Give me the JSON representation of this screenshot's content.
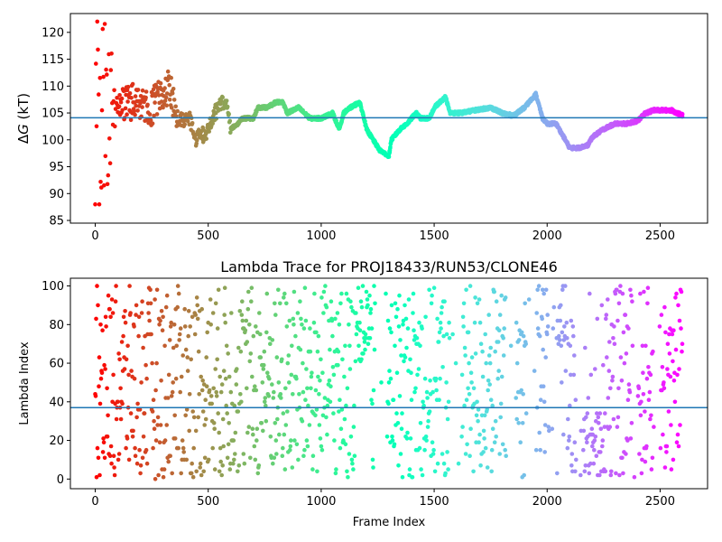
{
  "chart_data": [
    {
      "type": "scatter",
      "title": "",
      "xlabel": "",
      "ylabel_prefix": "Δ",
      "ylabel_symbol": "G",
      "ylabel_suffix": " (kT)",
      "xlim": [
        -110,
        2710
      ],
      "ylim": [
        84.5,
        123.5
      ],
      "xticks": [
        0,
        500,
        1000,
        1500,
        2000,
        2500
      ],
      "yticks": [
        85,
        90,
        95,
        100,
        105,
        110,
        115,
        120
      ],
      "hline": 104.1,
      "hline_color": "#1f77b4",
      "colormap": "rainbow",
      "frame_count": 2600,
      "trend": [
        [
          0,
          110
        ],
        [
          60,
          108
        ],
        [
          100,
          106
        ],
        [
          150,
          107
        ],
        [
          200,
          107
        ],
        [
          250,
          106
        ],
        [
          300,
          109
        ],
        [
          330,
          110
        ],
        [
          360,
          104
        ],
        [
          420,
          104
        ],
        [
          440,
          100
        ],
        [
          480,
          101
        ],
        [
          500,
          102
        ],
        [
          530,
          105
        ],
        [
          560,
          107
        ],
        [
          590,
          106
        ],
        [
          600,
          102
        ],
        [
          630,
          103
        ],
        [
          650,
          104
        ],
        [
          700,
          104
        ],
        [
          720,
          106
        ],
        [
          760,
          106
        ],
        [
          800,
          107
        ],
        [
          830,
          107
        ],
        [
          850,
          105
        ],
        [
          900,
          106
        ],
        [
          950,
          104
        ],
        [
          1000,
          104
        ],
        [
          1050,
          105
        ],
        [
          1080,
          102
        ],
        [
          1100,
          105
        ],
        [
          1130,
          106
        ],
        [
          1170,
          107
        ],
        [
          1190,
          104
        ],
        [
          1200,
          102
        ],
        [
          1230,
          100
        ],
        [
          1260,
          98
        ],
        [
          1300,
          97
        ],
        [
          1310,
          100
        ],
        [
          1350,
          102
        ],
        [
          1380,
          103
        ],
        [
          1420,
          105
        ],
        [
          1440,
          104
        ],
        [
          1480,
          104
        ],
        [
          1500,
          106
        ],
        [
          1550,
          108
        ],
        [
          1570,
          105
        ],
        [
          1620,
          105
        ],
        [
          1680,
          105.5
        ],
        [
          1750,
          106
        ],
        [
          1800,
          105
        ],
        [
          1850,
          104.5
        ],
        [
          1900,
          106
        ],
        [
          1950,
          108.5
        ],
        [
          1980,
          104
        ],
        [
          2000,
          103
        ],
        [
          2040,
          103
        ],
        [
          2080,
          100
        ],
        [
          2100,
          98.5
        ],
        [
          2140,
          98.5
        ],
        [
          2180,
          99
        ],
        [
          2200,
          100.5
        ],
        [
          2250,
          102
        ],
        [
          2300,
          103
        ],
        [
          2350,
          103
        ],
        [
          2400,
          103.5
        ],
        [
          2430,
          104.8
        ],
        [
          2470,
          105.5
        ],
        [
          2550,
          105.5
        ],
        [
          2600,
          104.5
        ]
      ]
    },
    {
      "type": "scatter",
      "title": "Lambda Trace for PROJ18433/RUN53/CLONE46",
      "xlabel": "Frame Index",
      "ylabel": "Lambda Index",
      "xlim": [
        -110,
        2710
      ],
      "ylim": [
        -5,
        104
      ],
      "xticks": [
        0,
        500,
        1000,
        1500,
        2000,
        2500
      ],
      "yticks": [
        0,
        20,
        40,
        60,
        80,
        100
      ],
      "hline": 37,
      "hline_color": "#1f77b4",
      "colormap": "rainbow",
      "frame_count": 2600,
      "sample_step": 2
    }
  ]
}
